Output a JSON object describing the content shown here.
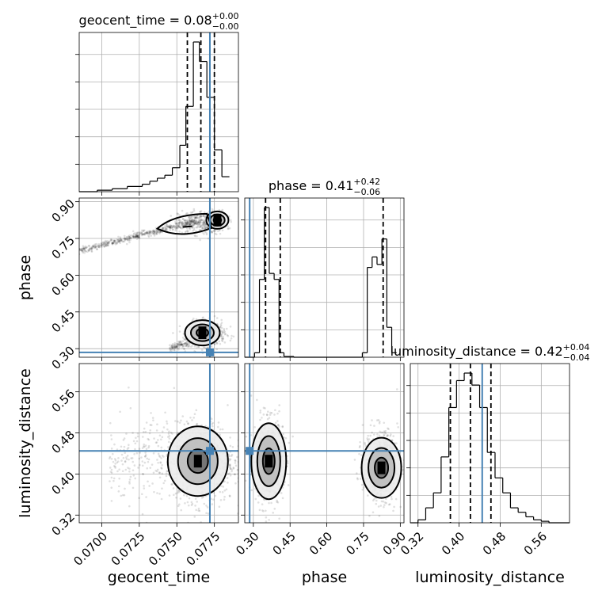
{
  "chart_data": {
    "type": "corner",
    "parameters": [
      {
        "key": "geocent_time",
        "label": "geocent_time",
        "title_prefix": "geocent_time = ",
        "median": "0.08",
        "plus": "+0.00",
        "minus": "−0.00",
        "range": [
          0.0685,
          0.0791
        ],
        "ticks": [
          0.07,
          0.0725,
          0.075,
          0.0775
        ],
        "tick_labels": [
          "0.0700",
          "0.0725",
          "0.0750",
          "0.0775"
        ],
        "quantiles": [
          0.0757,
          0.0766,
          0.0775
        ],
        "truth": 0.0772,
        "histogram": {
          "bin_edges": [
            0.0685,
            0.0697,
            0.0707,
            0.0717,
            0.0727,
            0.0732,
            0.0737,
            0.0742,
            0.0747,
            0.0752,
            0.0756,
            0.0761,
            0.0765,
            0.077,
            0.0775,
            0.078,
            0.0785
          ],
          "counts": [
            0,
            0.01,
            0.02,
            0.035,
            0.05,
            0.07,
            0.09,
            0.11,
            0.16,
            0.31,
            0.57,
            1.0,
            0.87,
            0.63,
            0.28,
            0.1
          ]
        }
      },
      {
        "key": "phase",
        "label": "phase",
        "title_prefix": "phase = ",
        "median": "0.41",
        "plus": "+0.42",
        "minus": "−0.06",
        "range": [
          0.265,
          0.915
        ],
        "ticks": [
          0.3,
          0.45,
          0.6,
          0.75,
          0.9
        ],
        "tick_labels": [
          "0.30",
          "0.45",
          "0.60",
          "0.75",
          "0.90"
        ],
        "quantiles": [
          0.35,
          0.41,
          0.83
        ],
        "truth": 0.285,
        "histogram": {
          "bin_edges": [
            0.265,
            0.305,
            0.325,
            0.345,
            0.365,
            0.385,
            0.405,
            0.425,
            0.465,
            0.745,
            0.765,
            0.785,
            0.805,
            0.825,
            0.845,
            0.865,
            0.885
          ],
          "counts": [
            0,
            0.03,
            0.52,
            1.0,
            0.56,
            0.52,
            0.03,
            0.005,
            0,
            0.03,
            0.6,
            0.67,
            0.62,
            0.79,
            0.2,
            0.03
          ]
        }
      },
      {
        "key": "luminosity_distance",
        "label": "luminosity_distance",
        "title_prefix": "luminosity_distance = ",
        "median": "0.42",
        "plus": "+0.04",
        "minus": "−0.04",
        "range": [
          0.305,
          0.615
        ],
        "ticks": [
          0.32,
          0.4,
          0.48,
          0.56
        ],
        "tick_labels": [
          "0.32",
          "0.40",
          "0.48",
          "0.56"
        ],
        "quantiles": [
          0.383,
          0.422,
          0.462
        ],
        "truth": 0.445,
        "histogram": {
          "bin_edges": [
            0.305,
            0.32,
            0.335,
            0.35,
            0.365,
            0.38,
            0.395,
            0.41,
            0.425,
            0.44,
            0.455,
            0.47,
            0.485,
            0.5,
            0.515,
            0.53,
            0.545,
            0.56,
            0.575,
            0.615
          ],
          "counts": [
            0,
            0.02,
            0.1,
            0.2,
            0.44,
            0.77,
            0.95,
            1.0,
            0.92,
            0.77,
            0.47,
            0.3,
            0.2,
            0.1,
            0.07,
            0.04,
            0.02,
            0.01,
            0
          ]
        }
      }
    ],
    "truth_color": "#4682b4",
    "grid": true
  }
}
